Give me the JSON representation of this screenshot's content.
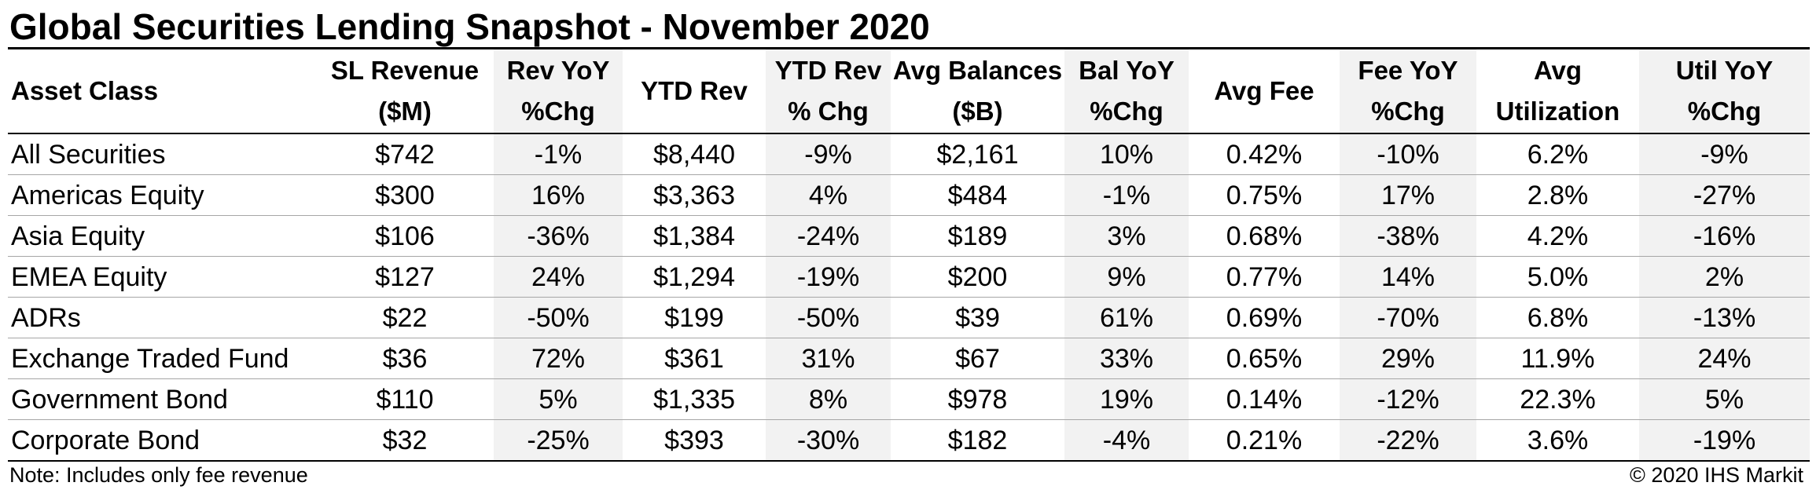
{
  "title": "Global Securities Lending Snapshot - November 2020",
  "columns": [
    {
      "line1": "Asset Class",
      "line2": ""
    },
    {
      "line1": "SL Revenue",
      "line2": "($M)"
    },
    {
      "line1": "Rev YoY",
      "line2": "%Chg"
    },
    {
      "line1": "YTD Rev",
      "line2": ""
    },
    {
      "line1": "YTD Rev",
      "line2": "% Chg"
    },
    {
      "line1": "Avg Balances",
      "line2": "($B)"
    },
    {
      "line1": "Bal YoY",
      "line2": "%Chg"
    },
    {
      "line1": "Avg Fee",
      "line2": ""
    },
    {
      "line1": "Fee YoY",
      "line2": "%Chg"
    },
    {
      "line1": "Avg",
      "line2": "Utilization"
    },
    {
      "line1": "Util YoY",
      "line2": "%Chg"
    }
  ],
  "rows": [
    [
      "All Securities",
      "$742",
      "-1%",
      "$8,440",
      "-9%",
      "$2,161",
      "10%",
      "0.42%",
      "-10%",
      "6.2%",
      "-9%"
    ],
    [
      "Americas Equity",
      "$300",
      "16%",
      "$3,363",
      "4%",
      "$484",
      "-1%",
      "0.75%",
      "17%",
      "2.8%",
      "-27%"
    ],
    [
      "Asia Equity",
      "$106",
      "-36%",
      "$1,384",
      "-24%",
      "$189",
      "3%",
      "0.68%",
      "-38%",
      "4.2%",
      "-16%"
    ],
    [
      "EMEA Equity",
      "$127",
      "24%",
      "$1,294",
      "-19%",
      "$200",
      "9%",
      "0.77%",
      "14%",
      "5.0%",
      "2%"
    ],
    [
      "ADRs",
      "$22",
      "-50%",
      "$199",
      "-50%",
      "$39",
      "61%",
      "0.69%",
      "-70%",
      "6.8%",
      "-13%"
    ],
    [
      "Exchange Traded Fund",
      "$36",
      "72%",
      "$361",
      "31%",
      "$67",
      "33%",
      "0.65%",
      "29%",
      "11.9%",
      "24%"
    ],
    [
      "Government Bond",
      "$110",
      "5%",
      "$1,335",
      "8%",
      "$978",
      "19%",
      "0.14%",
      "-12%",
      "22.3%",
      "5%"
    ],
    [
      "Corporate Bond",
      "$32",
      "-25%",
      "$393",
      "-30%",
      "$182",
      "-4%",
      "0.21%",
      "-22%",
      "3.6%",
      "-19%"
    ]
  ],
  "footer": {
    "note": "Note: Includes only fee revenue",
    "copyright": "© 2020 IHS Markit"
  },
  "colors": {
    "shaded_column_bg": "#f2f2f2",
    "row_divider": "#a6a6a6",
    "rule": "#000000"
  }
}
